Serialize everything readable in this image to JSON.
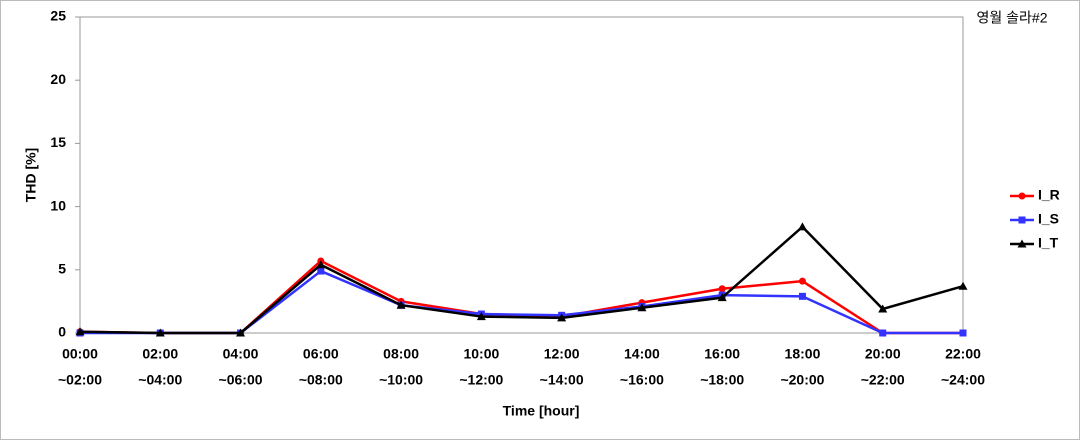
{
  "chart_data": {
    "type": "line",
    "annotation": "영월 솔라#2",
    "x_label": "Time [hour]",
    "y_label": "THD [%]",
    "categories": [
      [
        "00:00",
        "~02:00"
      ],
      [
        "02:00",
        "~04:00"
      ],
      [
        "04:00",
        "~06:00"
      ],
      [
        "06:00",
        "~08:00"
      ],
      [
        "08:00",
        "~10:00"
      ],
      [
        "10:00",
        "~12:00"
      ],
      [
        "12:00",
        "~14:00"
      ],
      [
        "14:00",
        "~16:00"
      ],
      [
        "16:00",
        "~18:00"
      ],
      [
        "18:00",
        "~20:00"
      ],
      [
        "20:00",
        "~22:00"
      ],
      [
        "22:00",
        "~24:00"
      ]
    ],
    "series": [
      {
        "name": "I_R",
        "color": "#ff0000",
        "marker": "circle",
        "values": [
          0.1,
          0,
          0,
          5.7,
          2.5,
          1.5,
          1.3,
          2.4,
          3.5,
          4.1,
          0,
          0
        ]
      },
      {
        "name": "I_S",
        "color": "#3333ff",
        "marker": "square",
        "values": [
          0,
          0,
          0,
          4.9,
          2.2,
          1.5,
          1.4,
          2.1,
          3.0,
          2.9,
          0,
          0
        ]
      },
      {
        "name": "I_T",
        "color": "#000000",
        "marker": "triangle",
        "values": [
          0.1,
          0,
          0,
          5.4,
          2.2,
          1.3,
          1.2,
          2.0,
          2.8,
          8.4,
          1.9,
          3.7
        ]
      }
    ],
    "ylim": [
      0,
      25
    ],
    "yticks": [
      0,
      5,
      10,
      15,
      20,
      25
    ],
    "grid": false,
    "legend": "right"
  }
}
